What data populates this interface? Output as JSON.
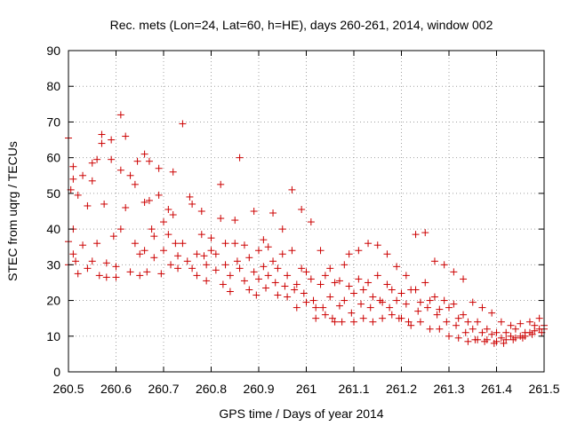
{
  "chart_data": {
    "type": "scatter",
    "title": "Rec. mets (Lon=24, Lat=60, h=HE), days 260-261, 2014, window 002",
    "xlabel": "GPS time / Days of year 2014",
    "ylabel": "STEC from uqrg / TECUs",
    "xlim": [
      260.5,
      261.5
    ],
    "ylim": [
      0,
      90
    ],
    "xticks": [
      260.5,
      260.6,
      260.7,
      260.8,
      260.9,
      261,
      261.1,
      261.2,
      261.3,
      261.4,
      261.5
    ],
    "xtick_labels": [
      "260.5",
      "260.6",
      "260.7",
      "260.8",
      "260.9",
      "261",
      "261.1",
      "261.2",
      "261.3",
      "261.4",
      "261.5"
    ],
    "yticks": [
      0,
      10,
      20,
      30,
      40,
      50,
      60,
      70,
      80,
      90
    ],
    "ytick_labels": [
      "0",
      "10",
      "20",
      "30",
      "40",
      "50",
      "60",
      "70",
      "80",
      "90"
    ],
    "grid": true,
    "marker": "plus",
    "color": "#cc0000",
    "series": [
      {
        "points": [
          [
            260.5,
            65.5
          ],
          [
            260.5,
            36.5
          ],
          [
            260.5,
            30
          ],
          [
            260.505,
            51
          ],
          [
            260.51,
            54
          ],
          [
            260.51,
            57.5
          ],
          [
            260.51,
            40
          ],
          [
            260.51,
            33
          ],
          [
            260.515,
            31
          ],
          [
            260.52,
            27.5
          ],
          [
            260.52,
            49.5
          ],
          [
            260.53,
            55
          ],
          [
            260.53,
            35.5
          ],
          [
            260.54,
            46.5
          ],
          [
            260.54,
            29
          ],
          [
            260.55,
            58.5
          ],
          [
            260.55,
            53.5
          ],
          [
            260.55,
            31
          ],
          [
            260.56,
            59.5
          ],
          [
            260.56,
            36
          ],
          [
            260.565,
            27
          ],
          [
            260.57,
            66.5
          ],
          [
            260.57,
            64
          ],
          [
            260.575,
            47
          ],
          [
            260.58,
            30.5
          ],
          [
            260.58,
            26.5
          ],
          [
            260.59,
            65
          ],
          [
            260.59,
            59.5
          ],
          [
            260.595,
            38
          ],
          [
            260.6,
            29.5
          ],
          [
            260.6,
            26.5
          ],
          [
            260.61,
            72
          ],
          [
            260.61,
            56.5
          ],
          [
            260.61,
            40
          ],
          [
            260.62,
            66
          ],
          [
            260.62,
            46
          ],
          [
            260.63,
            55
          ],
          [
            260.63,
            28
          ],
          [
            260.64,
            52.5
          ],
          [
            260.64,
            36
          ],
          [
            260.645,
            59
          ],
          [
            260.65,
            33
          ],
          [
            260.65,
            27
          ],
          [
            260.66,
            61
          ],
          [
            260.66,
            47.5
          ],
          [
            260.66,
            34
          ],
          [
            260.665,
            28
          ],
          [
            260.67,
            59
          ],
          [
            260.67,
            48
          ],
          [
            260.675,
            40
          ],
          [
            260.68,
            38
          ],
          [
            260.68,
            32
          ],
          [
            260.69,
            57
          ],
          [
            260.69,
            49.5
          ],
          [
            260.695,
            27.5
          ],
          [
            260.7,
            34
          ],
          [
            260.7,
            42
          ],
          [
            260.71,
            45.5
          ],
          [
            260.71,
            38.5
          ],
          [
            260.715,
            30
          ],
          [
            260.72,
            56
          ],
          [
            260.72,
            44
          ],
          [
            260.725,
            36
          ],
          [
            260.73,
            32.5
          ],
          [
            260.73,
            29
          ],
          [
            260.74,
            69.5
          ],
          [
            260.74,
            36
          ],
          [
            260.75,
            31
          ],
          [
            260.755,
            49
          ],
          [
            260.76,
            47
          ],
          [
            260.76,
            29
          ],
          [
            260.77,
            33
          ],
          [
            260.77,
            27
          ],
          [
            260.78,
            45
          ],
          [
            260.78,
            38.5
          ],
          [
            260.785,
            32.5
          ],
          [
            260.79,
            30
          ],
          [
            260.79,
            25.5
          ],
          [
            260.8,
            37.5
          ],
          [
            260.8,
            34
          ],
          [
            260.81,
            33
          ],
          [
            260.81,
            28.5
          ],
          [
            260.82,
            52.5
          ],
          [
            260.82,
            43
          ],
          [
            260.825,
            24.5
          ],
          [
            260.83,
            36
          ],
          [
            260.83,
            30
          ],
          [
            260.84,
            27
          ],
          [
            260.84,
            22.5
          ],
          [
            260.85,
            42.5
          ],
          [
            260.85,
            36
          ],
          [
            260.855,
            31
          ],
          [
            260.86,
            29
          ],
          [
            260.86,
            60
          ],
          [
            260.87,
            35.5
          ],
          [
            260.87,
            25.5
          ],
          [
            260.88,
            32
          ],
          [
            260.88,
            23
          ],
          [
            260.89,
            45
          ],
          [
            260.89,
            28
          ],
          [
            260.895,
            21.5
          ],
          [
            260.9,
            34
          ],
          [
            260.9,
            26
          ],
          [
            260.91,
            37
          ],
          [
            260.91,
            29.5
          ],
          [
            260.915,
            23.5
          ],
          [
            260.92,
            35
          ],
          [
            260.92,
            27
          ],
          [
            260.93,
            44.5
          ],
          [
            260.93,
            31
          ],
          [
            260.935,
            25
          ],
          [
            260.94,
            29
          ],
          [
            260.94,
            21.5
          ],
          [
            260.95,
            40
          ],
          [
            260.95,
            33
          ],
          [
            260.955,
            24
          ],
          [
            260.96,
            27
          ],
          [
            260.96,
            21
          ],
          [
            260.97,
            51
          ],
          [
            260.97,
            34
          ],
          [
            260.975,
            23
          ],
          [
            260.98,
            24.5
          ],
          [
            260.98,
            18
          ],
          [
            260.99,
            45.5
          ],
          [
            260.99,
            29
          ],
          [
            260.995,
            22
          ],
          [
            261,
            28
          ],
          [
            261,
            19.5
          ],
          [
            261.01,
            42
          ],
          [
            261.01,
            26
          ],
          [
            261.015,
            20
          ],
          [
            261.02,
            18
          ],
          [
            261.02,
            15
          ],
          [
            261.03,
            34
          ],
          [
            261.03,
            24.5
          ],
          [
            261.035,
            18
          ],
          [
            261.04,
            27
          ],
          [
            261.04,
            16
          ],
          [
            261.05,
            29
          ],
          [
            261.05,
            21
          ],
          [
            261.055,
            15
          ],
          [
            261.06,
            25
          ],
          [
            261.06,
            14
          ],
          [
            261.07,
            25.5
          ],
          [
            261.07,
            18.5
          ],
          [
            261.075,
            14
          ],
          [
            261.08,
            30
          ],
          [
            261.08,
            20
          ],
          [
            261.09,
            33
          ],
          [
            261.09,
            24
          ],
          [
            261.095,
            16.5
          ],
          [
            261.1,
            22
          ],
          [
            261.1,
            14
          ],
          [
            261.11,
            34
          ],
          [
            261.11,
            26
          ],
          [
            261.115,
            19
          ],
          [
            261.12,
            23
          ],
          [
            261.12,
            15
          ],
          [
            261.13,
            36
          ],
          [
            261.13,
            25
          ],
          [
            261.135,
            18
          ],
          [
            261.14,
            21
          ],
          [
            261.14,
            14
          ],
          [
            261.15,
            35.5
          ],
          [
            261.15,
            27
          ],
          [
            261.155,
            20
          ],
          [
            261.16,
            19.5
          ],
          [
            261.16,
            15
          ],
          [
            261.17,
            33
          ],
          [
            261.17,
            24.5
          ],
          [
            261.175,
            18
          ],
          [
            261.18,
            23
          ],
          [
            261.18,
            16
          ],
          [
            261.19,
            29.5
          ],
          [
            261.19,
            20
          ],
          [
            261.195,
            15
          ],
          [
            261.2,
            22
          ],
          [
            261.2,
            15
          ],
          [
            261.21,
            27
          ],
          [
            261.21,
            19
          ],
          [
            261.215,
            14
          ],
          [
            261.22,
            23
          ],
          [
            261.22,
            13
          ],
          [
            261.23,
            38.5
          ],
          [
            261.23,
            23
          ],
          [
            261.235,
            17
          ],
          [
            261.24,
            19.5
          ],
          [
            261.24,
            14
          ],
          [
            261.25,
            39
          ],
          [
            261.25,
            25
          ],
          [
            261.255,
            18
          ],
          [
            261.26,
            20
          ],
          [
            261.26,
            12
          ],
          [
            261.27,
            31
          ],
          [
            261.27,
            21
          ],
          [
            261.275,
            16
          ],
          [
            261.28,
            17.5
          ],
          [
            261.28,
            12
          ],
          [
            261.29,
            30
          ],
          [
            261.29,
            20
          ],
          [
            261.295,
            14
          ],
          [
            261.3,
            18
          ],
          [
            261.3,
            10
          ],
          [
            261.31,
            28
          ],
          [
            261.31,
            19
          ],
          [
            261.315,
            13
          ],
          [
            261.32,
            15
          ],
          [
            261.32,
            9.5
          ],
          [
            261.33,
            26
          ],
          [
            261.33,
            16
          ],
          [
            261.335,
            11
          ],
          [
            261.34,
            14
          ],
          [
            261.34,
            8.5
          ],
          [
            261.35,
            19.5
          ],
          [
            261.35,
            12
          ],
          [
            261.355,
            9
          ],
          [
            261.36,
            14
          ],
          [
            261.36,
            9
          ],
          [
            261.37,
            18
          ],
          [
            261.37,
            11
          ],
          [
            261.375,
            8.5
          ],
          [
            261.38,
            12
          ],
          [
            261.38,
            9
          ],
          [
            261.39,
            16.5
          ],
          [
            261.39,
            10.5
          ],
          [
            261.395,
            8
          ],
          [
            261.4,
            11
          ],
          [
            261.4,
            8.5
          ],
          [
            261.41,
            14
          ],
          [
            261.41,
            9.5
          ],
          [
            261.415,
            8
          ],
          [
            261.42,
            11
          ],
          [
            261.42,
            9
          ],
          [
            261.43,
            13
          ],
          [
            261.43,
            10
          ],
          [
            261.435,
            9
          ],
          [
            261.44,
            12
          ],
          [
            261.44,
            9.5
          ],
          [
            261.45,
            13.5
          ],
          [
            261.45,
            10
          ],
          [
            261.455,
            9.5
          ],
          [
            261.46,
            11
          ],
          [
            261.46,
            10
          ],
          [
            261.47,
            14
          ],
          [
            261.47,
            11
          ],
          [
            261.475,
            10.5
          ],
          [
            261.48,
            13
          ],
          [
            261.48,
            11.5
          ],
          [
            261.49,
            15
          ],
          [
            261.49,
            12
          ],
          [
            261.495,
            11
          ],
          [
            261.5,
            13
          ],
          [
            261.5,
            12
          ]
        ]
      }
    ]
  }
}
